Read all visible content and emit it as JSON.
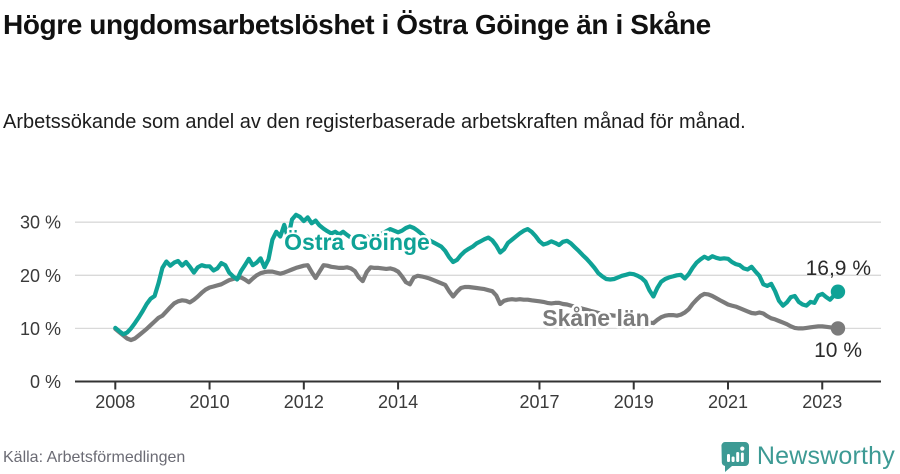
{
  "header": {
    "title": "Högre ungdomsarbetslöshet i Östra Göinge än i Skåne",
    "subtitle": "Arbetssökande som andel av den registerbaserade arbetskraften månad för månad."
  },
  "source": {
    "label": "Källa: Arbetsförmedlingen"
  },
  "logo": {
    "brand": "Newsworthy",
    "color": "#3d9a94"
  },
  "chart_data": {
    "type": "line",
    "title": "Högre ungdomsarbetslöshet i Östra Göinge än i Skåne",
    "subtitle": "Arbetssökande som andel av den registerbaserade arbetskraften månad för månad",
    "unit": "%",
    "frequency": "monthly",
    "x_start": {
      "year": 2008,
      "month": 1
    },
    "x_end": {
      "year": 2023,
      "month": 5
    },
    "ylim": [
      0,
      33
    ],
    "grid": "horizontal",
    "legend_position": "inline-labels",
    "x_ticks": [
      {
        "label": "2008",
        "year": 2008
      },
      {
        "label": "2010",
        "year": 2010
      },
      {
        "label": "2012",
        "year": 2012
      },
      {
        "label": "2014",
        "year": 2014
      },
      {
        "label": "2017",
        "year": 2017
      },
      {
        "label": "2019",
        "year": 2019
      },
      {
        "label": "2021",
        "year": 2021
      },
      {
        "label": "2023",
        "year": 2023
      }
    ],
    "y_ticks": [
      {
        "label": "0 %",
        "value": 0
      },
      {
        "label": "10 %",
        "value": 10
      },
      {
        "label": "20 %",
        "value": 20
      },
      {
        "label": "30 %",
        "value": 30
      }
    ],
    "series": [
      {
        "name": "Östra Göinge",
        "color": "#0fa296",
        "end_label": "16,9 %",
        "last_value": 16.9,
        "values": [
          10.1,
          9.5,
          8.9,
          9.2,
          10.0,
          11.0,
          12.1,
          13.3,
          14.6,
          15.6,
          16.1,
          18.5,
          21.4,
          22.6,
          21.8,
          22.4,
          22.7,
          21.8,
          22.5,
          21.6,
          20.5,
          21.5,
          21.9,
          21.7,
          21.7,
          20.9,
          21.3,
          22.3,
          21.9,
          20.5,
          19.8,
          19.2,
          20.8,
          21.9,
          23.1,
          21.9,
          22.4,
          23.2,
          21.5,
          23.0,
          26.7,
          28.2,
          27.3,
          29.5,
          27.0,
          30.5,
          31.4,
          31.0,
          30.2,
          30.9,
          29.8,
          30.3,
          29.4,
          28.8,
          28.3,
          27.9,
          28.2,
          27.7,
          28.2,
          27.6,
          27.1,
          26.8,
          27.3,
          26.9,
          27.4,
          26.8,
          27.0,
          27.5,
          27.9,
          28.3,
          28.7,
          28.4,
          28.1,
          28.4,
          28.9,
          29.2,
          28.9,
          28.4,
          27.8,
          27.1,
          26.6,
          26.2,
          25.8,
          25.4,
          24.6,
          23.4,
          22.5,
          22.9,
          23.8,
          24.5,
          25.0,
          25.4,
          26.0,
          26.4,
          26.8,
          27.1,
          26.6,
          25.6,
          24.3,
          24.9,
          26.1,
          26.7,
          27.3,
          27.9,
          28.4,
          28.7,
          28.2,
          27.4,
          26.4,
          25.8,
          26.0,
          26.4,
          26.1,
          25.7,
          26.3,
          26.5,
          26.0,
          25.3,
          24.6,
          23.8,
          23.1,
          22.3,
          21.4,
          20.4,
          19.8,
          19.3,
          19.2,
          19.3,
          19.6,
          19.9,
          20.1,
          20.3,
          20.2,
          19.9,
          19.5,
          18.8,
          17.2,
          16.0,
          17.6,
          18.8,
          19.3,
          19.6,
          19.8,
          20.0,
          20.1,
          19.4,
          20.2,
          21.4,
          22.4,
          23.0,
          23.5,
          23.1,
          23.6,
          23.3,
          23.1,
          23.2,
          23.1,
          22.5,
          22.1,
          21.9,
          21.3,
          21.1,
          21.6,
          20.7,
          19.9,
          18.3,
          18.0,
          18.4,
          17.0,
          15.2,
          14.3,
          14.9,
          15.9,
          16.1,
          15.0,
          14.5,
          14.3,
          15.0,
          14.8,
          16.2,
          16.5,
          15.9,
          15.4,
          16.2,
          16.9
        ]
      },
      {
        "name": "Skåne län",
        "color": "#7b7b7b",
        "end_label": "10 %",
        "last_value": 10,
        "values": [
          9.9,
          9.3,
          8.7,
          8.1,
          7.8,
          8.1,
          8.7,
          9.3,
          9.9,
          10.6,
          11.3,
          12.0,
          12.4,
          13.2,
          14.0,
          14.7,
          15.1,
          15.3,
          15.2,
          14.9,
          15.4,
          16.0,
          16.7,
          17.3,
          17.7,
          17.9,
          18.1,
          18.3,
          18.7,
          19.1,
          19.3,
          19.5,
          19.6,
          19.2,
          18.7,
          19.4,
          20.0,
          20.4,
          20.6,
          20.7,
          20.7,
          20.5,
          20.3,
          20.5,
          20.8,
          21.1,
          21.4,
          21.6,
          21.8,
          21.9,
          20.6,
          19.5,
          20.7,
          21.9,
          21.8,
          21.6,
          21.5,
          21.4,
          21.4,
          21.5,
          21.3,
          20.8,
          19.6,
          18.9,
          20.6,
          21.5,
          21.4,
          21.4,
          21.3,
          21.2,
          21.3,
          21.1,
          20.7,
          19.8,
          18.7,
          18.3,
          19.6,
          19.9,
          19.8,
          19.6,
          19.4,
          19.1,
          18.8,
          18.5,
          18.2,
          17.0,
          16.0,
          16.9,
          17.6,
          17.8,
          17.8,
          17.7,
          17.6,
          17.5,
          17.4,
          17.2,
          17.0,
          16.2,
          14.6,
          15.2,
          15.4,
          15.5,
          15.4,
          15.5,
          15.4,
          15.4,
          15.3,
          15.2,
          15.1,
          15.0,
          14.8,
          14.7,
          14.8,
          14.8,
          14.6,
          14.5,
          14.3,
          14.1,
          13.9,
          13.7,
          13.5,
          13.3,
          13.1,
          12.9,
          12.7,
          12.6,
          12.5,
          12.4,
          12.4,
          12.4,
          12.4,
          12.4,
          12.3,
          12.2,
          12.0,
          11.6,
          11.1,
          11.0,
          11.6,
          12.1,
          12.4,
          12.5,
          12.5,
          12.4,
          12.6,
          13.0,
          13.6,
          14.6,
          15.4,
          16.1,
          16.5,
          16.4,
          16.1,
          15.7,
          15.3,
          14.9,
          14.5,
          14.3,
          14.1,
          13.8,
          13.5,
          13.2,
          12.9,
          12.8,
          13.0,
          12.8,
          12.3,
          11.9,
          11.7,
          11.4,
          11.1,
          10.8,
          10.4,
          10.1,
          10.0,
          10.0,
          10.1,
          10.2,
          10.3,
          10.4,
          10.4,
          10.3,
          10.2,
          10.1,
          10.0
        ]
      }
    ]
  }
}
